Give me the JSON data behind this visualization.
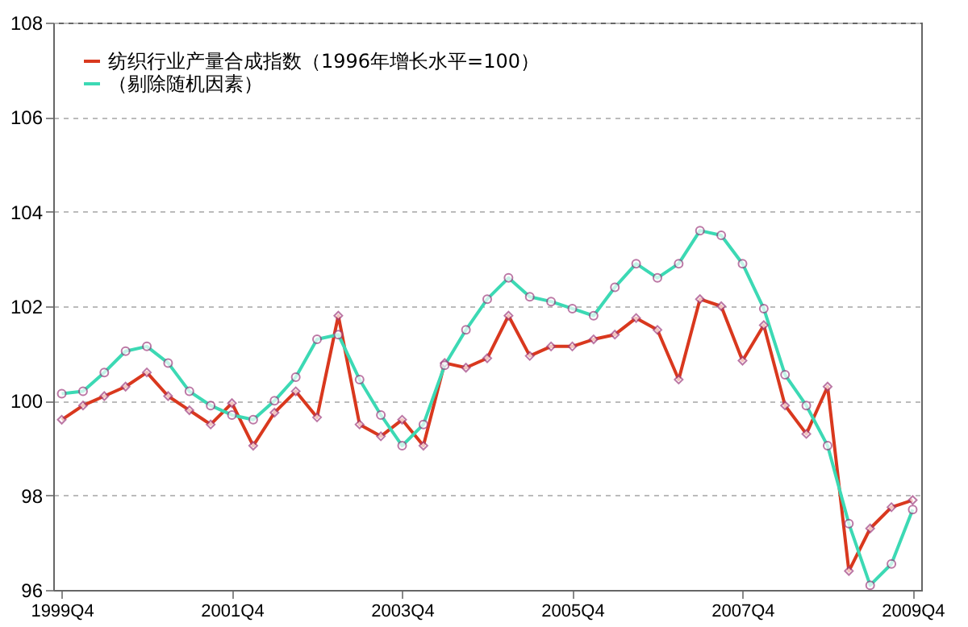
{
  "chart_data": {
    "type": "line",
    "categories": [
      "1999Q4",
      null,
      null,
      null,
      null,
      null,
      null,
      null,
      "2001Q4",
      null,
      null,
      null,
      null,
      null,
      null,
      null,
      "2003Q4",
      null,
      null,
      null,
      null,
      null,
      null,
      null,
      "2005Q4",
      null,
      null,
      null,
      null,
      null,
      null,
      null,
      "2007Q4",
      null,
      null,
      null,
      null,
      null,
      null,
      null,
      "2009Q4"
    ],
    "series": [
      {
        "name": "纺织行业产量合成指数（1996年增长水平=100）",
        "color": "#d9381e",
        "marker": "diamond",
        "values": [
          99.6,
          99.9,
          100.1,
          100.3,
          100.6,
          100.1,
          99.8,
          99.5,
          99.95,
          99.05,
          99.75,
          100.2,
          99.65,
          101.8,
          99.5,
          99.25,
          99.6,
          99.05,
          100.8,
          100.7,
          100.9,
          101.8,
          100.95,
          101.15,
          101.15,
          101.3,
          101.4,
          101.75,
          101.5,
          100.45,
          102.15,
          102.0,
          100.85,
          101.6,
          99.9,
          99.3,
          100.3,
          96.4,
          97.3,
          97.75,
          97.9
        ]
      },
      {
        "name": "（剔除随机因素）",
        "color": "#3cd9b4",
        "marker": "circle",
        "values": [
          100.15,
          100.2,
          100.6,
          101.05,
          101.15,
          100.8,
          100.2,
          99.9,
          99.7,
          99.6,
          100.0,
          100.5,
          101.3,
          101.4,
          100.45,
          99.7,
          99.05,
          99.5,
          100.75,
          101.5,
          102.15,
          102.6,
          102.2,
          102.1,
          101.95,
          101.8,
          102.4,
          102.9,
          102.6,
          102.9,
          103.6,
          103.5,
          102.9,
          101.95,
          100.55,
          99.9,
          99.05,
          97.4,
          96.1,
          96.55,
          97.7
        ]
      }
    ],
    "ylim": [
      96,
      108
    ],
    "yticks": [
      96,
      98,
      100,
      102,
      104,
      106,
      108
    ],
    "grid": "y",
    "legend": "top left",
    "line_style": "solid"
  }
}
